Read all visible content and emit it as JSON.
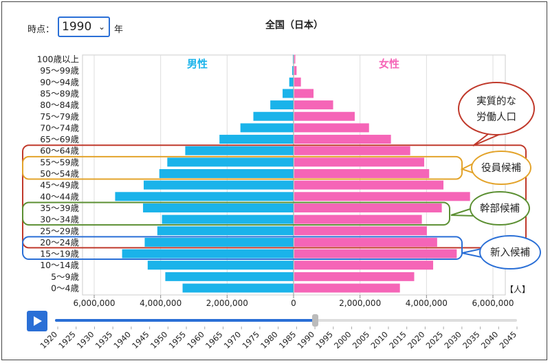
{
  "controls": {
    "time_label": "時点：",
    "selected_year": "1990",
    "year_suffix": "年",
    "unit": "【人】"
  },
  "colors": {
    "male": "#1ab3ea",
    "female": "#f565b7"
  },
  "chart_data": {
    "type": "bar",
    "title": "全国（日本）",
    "orientation": "horizontal",
    "categories": [
      "100歳以上",
      "95〜99歳",
      "90〜94歳",
      "85〜89歳",
      "80〜84歳",
      "75〜79歳",
      "70〜74歳",
      "65〜69歳",
      "60〜64歳",
      "55〜59歳",
      "50〜54歳",
      "45〜49歳",
      "40〜44歳",
      "35〜39歳",
      "30〜34歳",
      "25〜29歳",
      "20〜24歳",
      "15〜19歳",
      "10〜14歳",
      "5〜9歳",
      "0〜4歳"
    ],
    "series": [
      {
        "name": "男性",
        "values": [
          20000,
          40000,
          130000,
          330000,
          700000,
          1210000,
          1600000,
          2230000,
          3260000,
          3800000,
          4040000,
          4510000,
          5370000,
          4530000,
          3960000,
          4100000,
          4480000,
          5160000,
          4390000,
          3860000,
          3340000
        ]
      },
      {
        "name": "女性",
        "values": [
          30000,
          70000,
          200000,
          580000,
          1170000,
          1820000,
          2250000,
          2910000,
          3490000,
          3910000,
          4060000,
          4490000,
          5290000,
          4440000,
          3840000,
          3990000,
          4300000,
          4890000,
          4180000,
          3610000,
          3180000
        ]
      }
    ],
    "xlim": [
      -6000000,
      6000000
    ],
    "ticks": [
      "6,000,000",
      "4,000,000",
      "2,000,000",
      "0",
      "2,000,000",
      "4,000,000",
      "6,000,000"
    ]
  },
  "annotations": {
    "labor": {
      "line1": "実質的な",
      "line2": "労働人口",
      "from": "60〜64歳",
      "to": "20〜24歳",
      "color": "#c0392b"
    },
    "officer": {
      "text": "役員候補",
      "from": "55〜59歳",
      "to": "50〜54歳",
      "color": "#e3a32a"
    },
    "manager": {
      "text": "幹部候補",
      "from": "35〜39歳",
      "to": "30〜34歳",
      "color": "#5b8f32"
    },
    "newhire": {
      "text": "新入候補",
      "from": "20〜24歳",
      "to": "15〜19歳",
      "color": "#2a6fd6"
    }
  },
  "timeline": {
    "years": [
      "1920",
      "1925",
      "1930",
      "1935",
      "1940",
      "1945",
      "1950",
      "1955",
      "1960",
      "1965",
      "1970",
      "1975",
      "1980",
      "1985",
      "1990",
      "1995",
      "2000",
      "2005",
      "2010",
      "2015",
      "2020",
      "2025",
      "2030",
      "2035",
      "2040",
      "2045"
    ],
    "current": 1990
  }
}
